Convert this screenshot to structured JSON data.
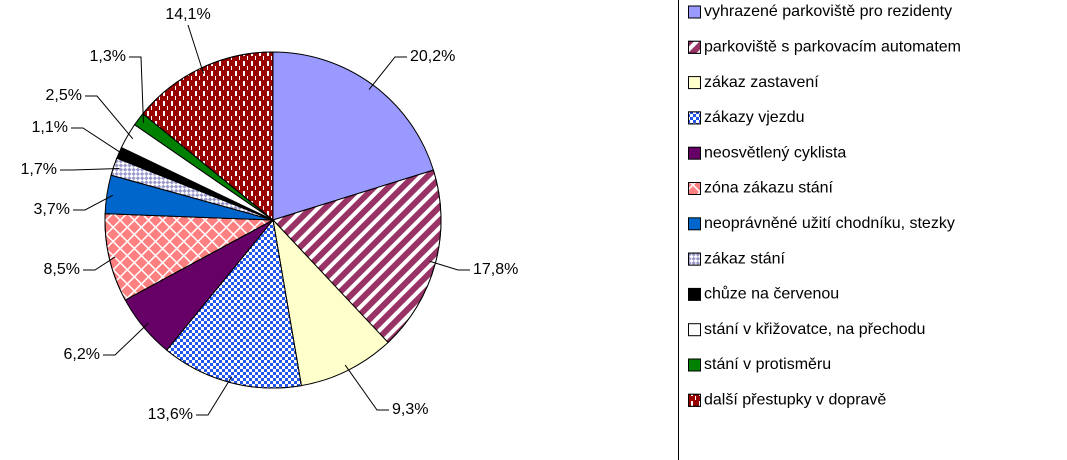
{
  "chart_data": {
    "type": "pie",
    "categories": [
      "vyhrazené parkoviště pro rezidenty",
      "parkoviště s parkovacím automatem",
      "zákaz zastavení",
      "zákazy vjezdu",
      "neosvětlený cyklista",
      "zóna zákazu stání",
      "neoprávněné užití chodníku, stezky",
      "zákaz stání",
      "chůze na červenou",
      "stání v křižovatce, na přechodu",
      "stání v protisměru",
      "další přestupky v dopravě"
    ],
    "values": [
      20.2,
      17.8,
      9.3,
      13.6,
      6.2,
      8.5,
      3.7,
      1.7,
      1.1,
      2.5,
      1.3,
      14.1
    ],
    "value_labels": [
      "20,2%",
      "17,8%",
      "9,3%",
      "13,6%",
      "6,2%",
      "8,5%",
      "3,7%",
      "1,7%",
      "1,1%",
      "2,5%",
      "1,3%",
      "14,1%"
    ],
    "colors": [
      "#9999ff",
      "#993366",
      "#ffffcc",
      "#2255ee",
      "#660066",
      "#ff8080",
      "#0066cc",
      "#9999cc",
      "#000000",
      "#ffffff",
      "#008000",
      "#990000"
    ],
    "patterns": [
      "none",
      "diagonal",
      "none",
      "dots",
      "none",
      "cross",
      "none",
      "checker",
      "none",
      "none",
      "none",
      "dashes"
    ],
    "legend": "right"
  }
}
